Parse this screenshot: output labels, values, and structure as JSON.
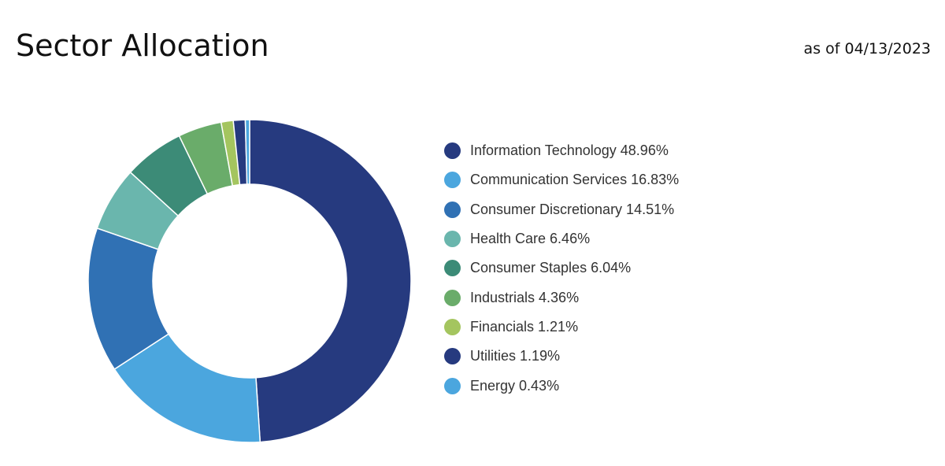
{
  "header": {
    "title": "Sector Allocation",
    "as_of": "as of 04/13/2023"
  },
  "chart_data": {
    "type": "pie",
    "variant": "donut",
    "legend_position": "right",
    "slices": [
      {
        "label": "Information Technology",
        "value": 48.96,
        "display": "48.96%",
        "color": "#263a7f"
      },
      {
        "label": "Communication Services",
        "value": 16.83,
        "display": "16.83%",
        "color": "#4ba6de"
      },
      {
        "label": "Consumer Discretionary",
        "value": 14.51,
        "display": "14.51%",
        "color": "#3071b4"
      },
      {
        "label": "Health Care",
        "value": 6.46,
        "display": "6.46%",
        "color": "#6ab6ad"
      },
      {
        "label": "Consumer Staples",
        "value": 6.04,
        "display": "6.04%",
        "color": "#3c8b77"
      },
      {
        "label": "Industrials",
        "value": 4.36,
        "display": "4.36%",
        "color": "#6aac6a"
      },
      {
        "label": "Financials",
        "value": 1.21,
        "display": "1.21%",
        "color": "#a4c55f"
      },
      {
        "label": "Utilities",
        "value": 1.19,
        "display": "1.19%",
        "color": "#263a7f"
      },
      {
        "label": "Energy",
        "value": 0.43,
        "display": "0.43%",
        "color": "#4ba6de"
      }
    ]
  }
}
